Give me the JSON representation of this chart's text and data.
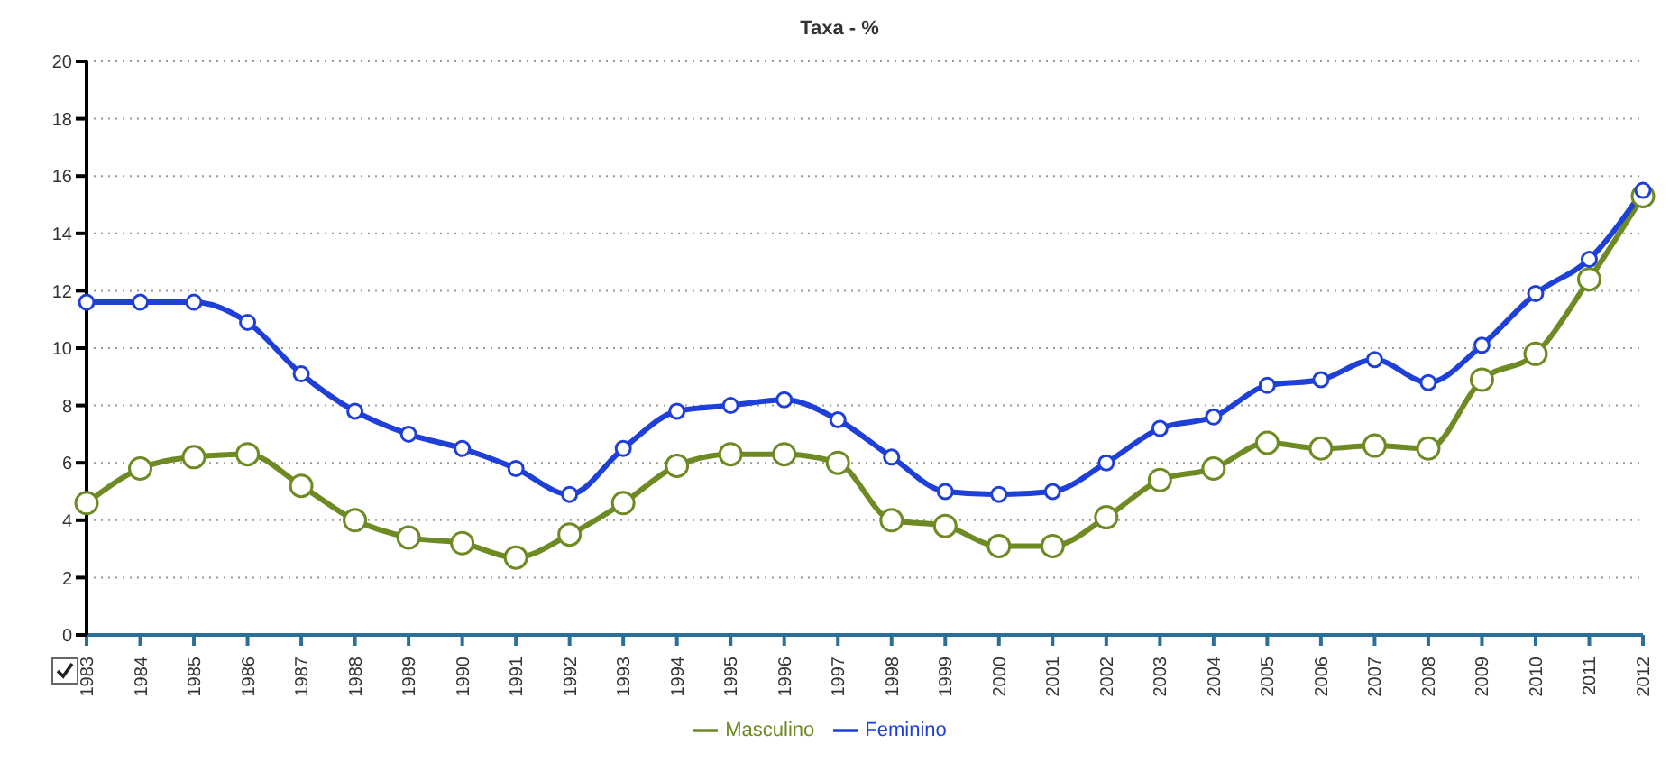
{
  "chart_data": {
    "type": "line",
    "title": "Taxa - %",
    "categories": [
      "1983",
      "1984",
      "1985",
      "1986",
      "1987",
      "1988",
      "1989",
      "1990",
      "1991",
      "1992",
      "1993",
      "1994",
      "1995",
      "1996",
      "1997",
      "1998",
      "1999",
      "2000",
      "2001",
      "2002",
      "2003",
      "2004",
      "2005",
      "2006",
      "2007",
      "2008",
      "2009",
      "2010",
      "2011",
      "2012"
    ],
    "series": [
      {
        "name": "Masculino",
        "color": "#6e8a22",
        "values": [
          4.6,
          5.8,
          6.2,
          6.3,
          5.2,
          4.0,
          3.4,
          3.2,
          2.7,
          3.5,
          4.6,
          5.9,
          6.3,
          6.3,
          6.0,
          4.0,
          3.8,
          3.1,
          3.1,
          4.1,
          5.4,
          5.8,
          6.7,
          6.5,
          6.6,
          6.5,
          8.9,
          9.8,
          12.4,
          15.3
        ]
      },
      {
        "name": "Feminino",
        "color": "#1e40d8",
        "values": [
          11.6,
          11.6,
          11.6,
          10.9,
          9.1,
          7.8,
          7.0,
          6.5,
          5.8,
          4.9,
          6.5,
          7.8,
          8.0,
          8.2,
          7.5,
          6.2,
          5.0,
          4.9,
          5.0,
          6.0,
          7.2,
          7.6,
          8.7,
          8.9,
          9.6,
          8.8,
          10.1,
          11.9,
          13.1,
          15.5
        ]
      }
    ],
    "ylim": [
      0,
      20
    ],
    "yticks": [
      0,
      2,
      4,
      6,
      8,
      10,
      12,
      14,
      16,
      18,
      20
    ],
    "grid": "y",
    "legend": "bottom",
    "marker": "circle",
    "line_style": "solid"
  }
}
